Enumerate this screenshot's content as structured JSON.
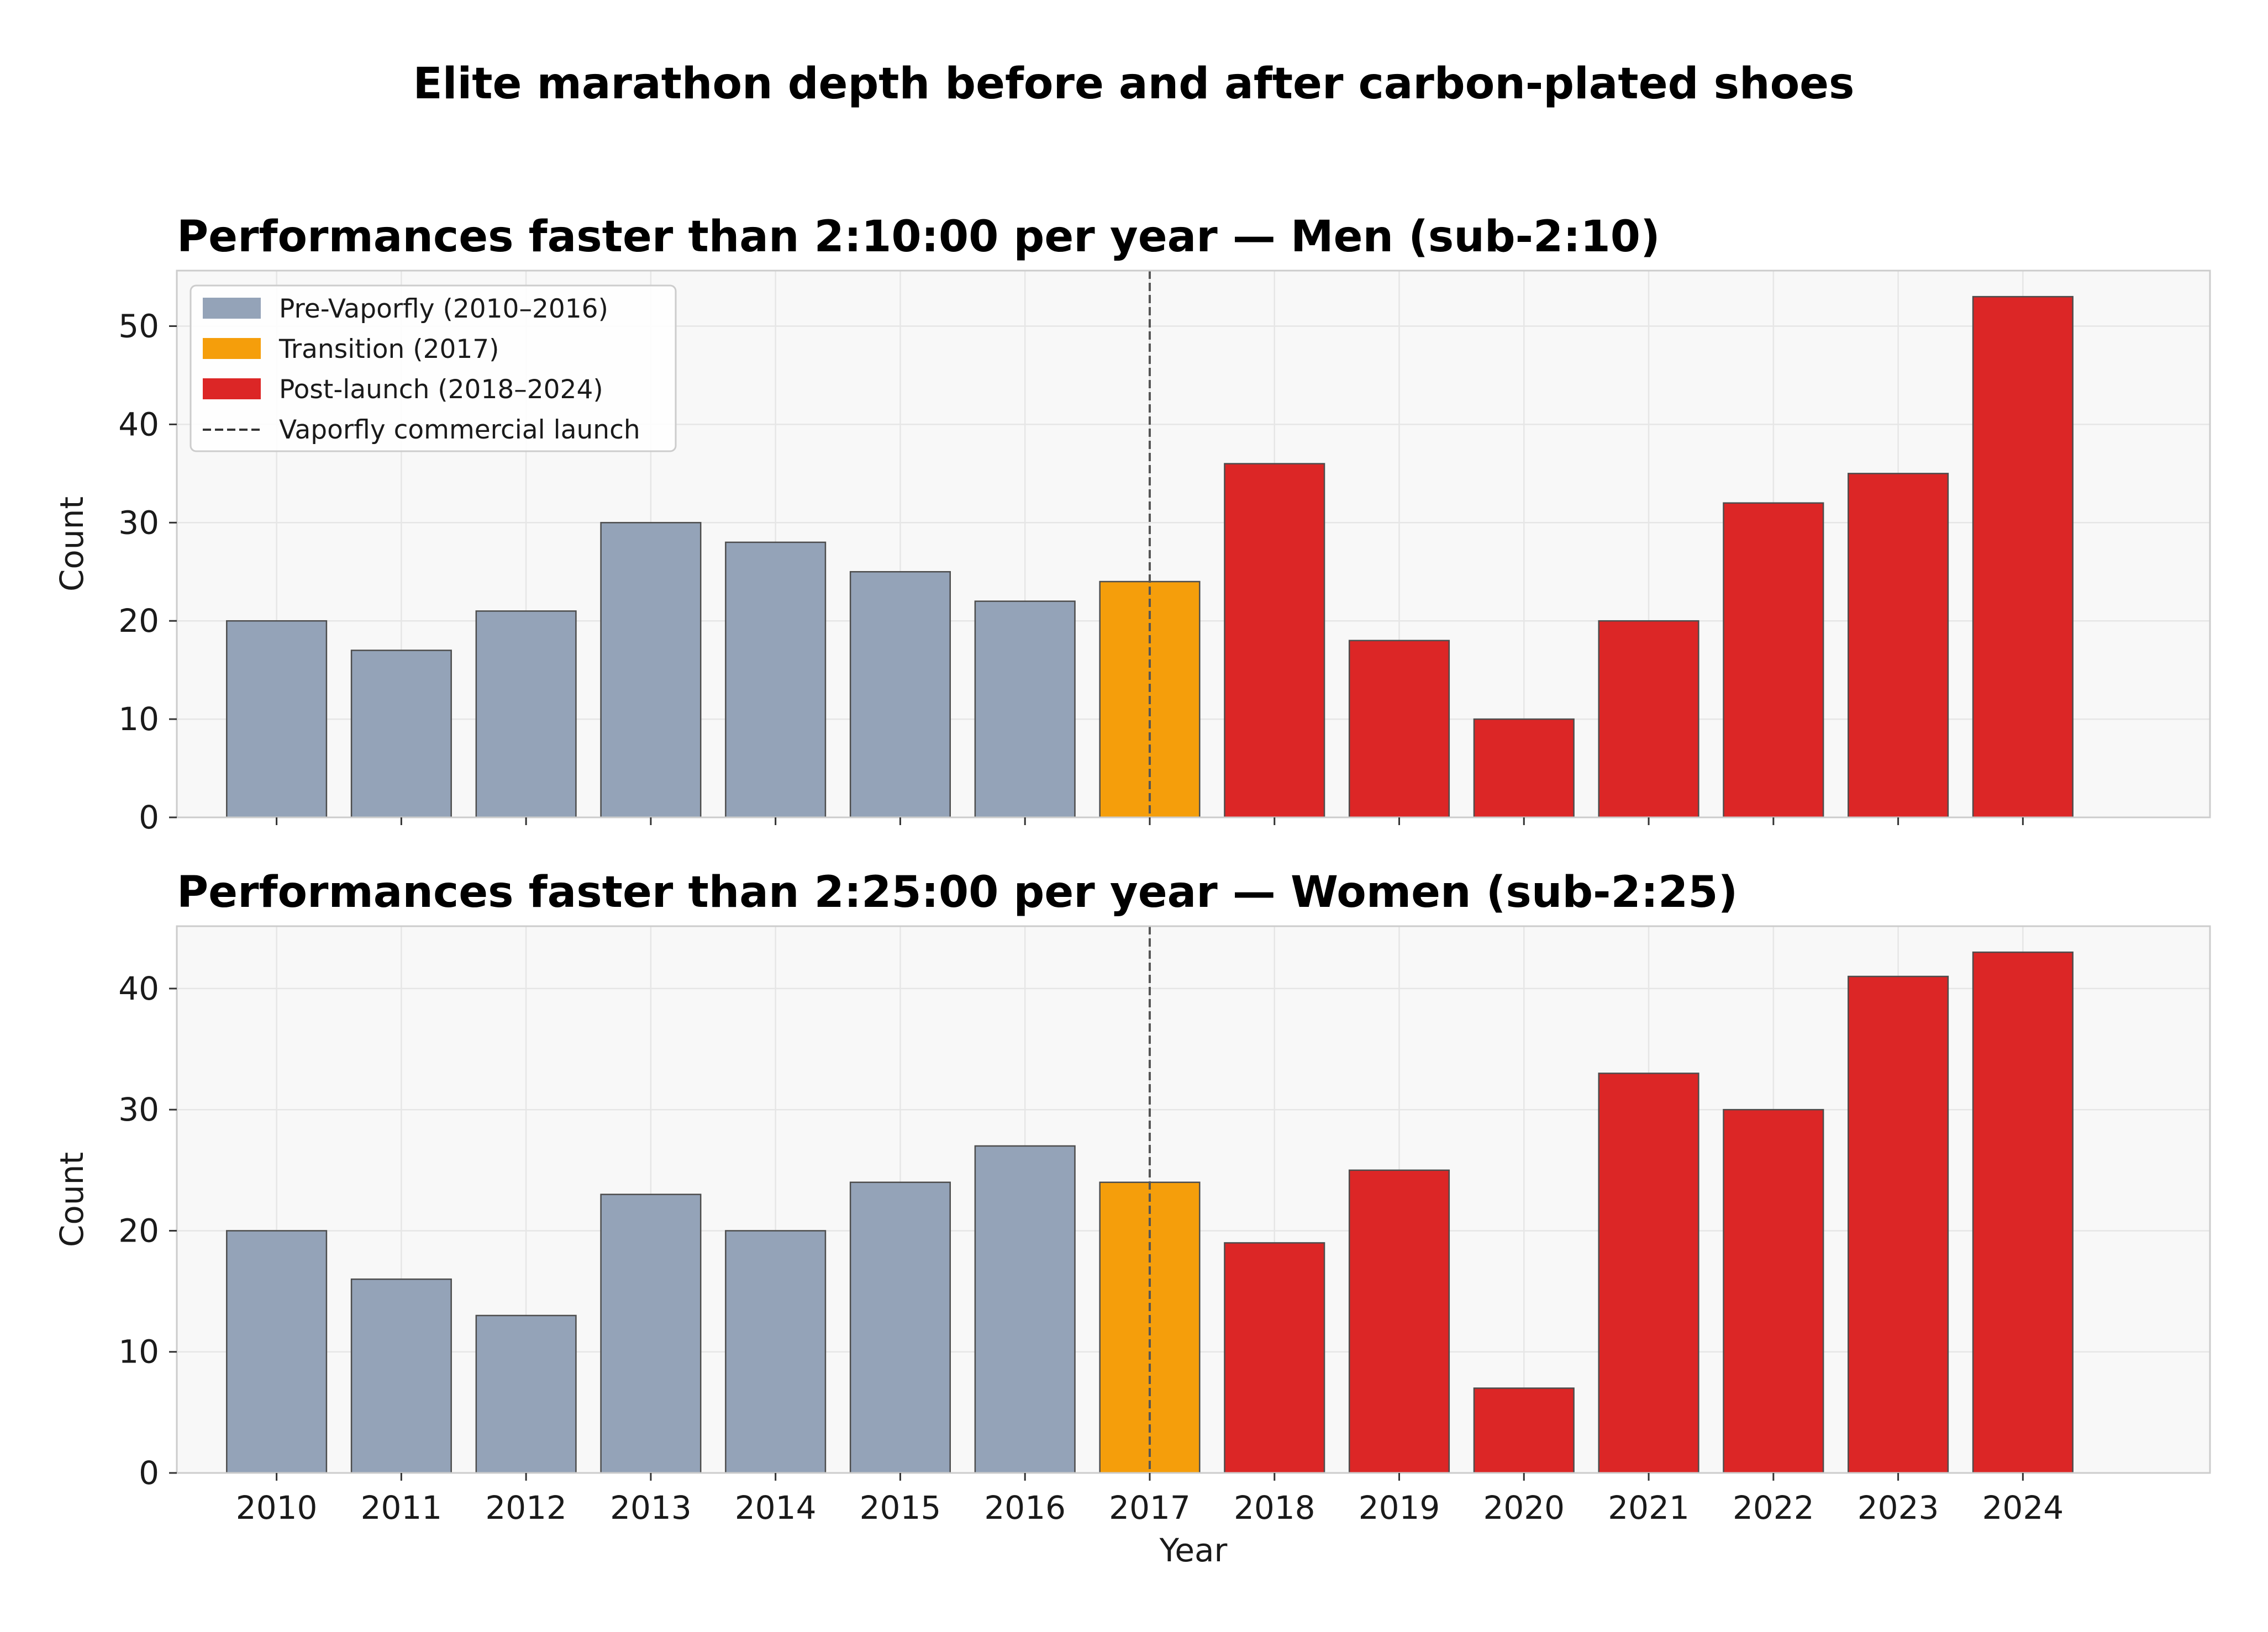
{
  "suptitle": "Elite marathon depth before and after carbon-plated shoes",
  "colors": {
    "pre": "#94a3b8",
    "transition": "#f59e0b",
    "post": "#dc2626",
    "launch_line": "#555555",
    "axes_bg": "#f8f8f8",
    "grid": "#e6e6e6",
    "spine": "#cccccc",
    "bar_edge": "#4d4d4d"
  },
  "legend": {
    "placement": "upper-left",
    "entries": [
      {
        "label": "Pre-Vaporfly (2010–2016)",
        "kind": "patch",
        "color_key": "pre"
      },
      {
        "label": "Transition (2017)",
        "kind": "patch",
        "color_key": "transition"
      },
      {
        "label": "Post-launch (2018–2024)",
        "kind": "patch",
        "color_key": "post"
      },
      {
        "label": "Vaporfly commercial launch",
        "kind": "dashed-line",
        "color_key": "launch_line"
      }
    ]
  },
  "chart_data": [
    {
      "type": "bar",
      "title": "Performances faster than 2:10:00 per year — Men (sub-2:10)",
      "xlabel": "",
      "ylabel": "Count",
      "categories": [
        "2010",
        "2011",
        "2012",
        "2013",
        "2014",
        "2015",
        "2016",
        "2017",
        "2018",
        "2019",
        "2020",
        "2021",
        "2022",
        "2023",
        "2024"
      ],
      "values": [
        20,
        17,
        21,
        30,
        28,
        25,
        22,
        24,
        36,
        18,
        10,
        20,
        32,
        35,
        53
      ],
      "phase": [
        "pre",
        "pre",
        "pre",
        "pre",
        "pre",
        "pre",
        "pre",
        "transition",
        "post",
        "post",
        "post",
        "post",
        "post",
        "post",
        "post"
      ],
      "ylim": [
        0,
        55.65
      ],
      "yticks": [
        0,
        10,
        20,
        30,
        40,
        50
      ],
      "show_xtick_labels": false,
      "launch_year": "2017",
      "grid": true,
      "legend": true
    },
    {
      "type": "bar",
      "title": "Performances faster than 2:25:00 per year — Women (sub-2:25)",
      "xlabel": "Year",
      "ylabel": "Count",
      "categories": [
        "2010",
        "2011",
        "2012",
        "2013",
        "2014",
        "2015",
        "2016",
        "2017",
        "2018",
        "2019",
        "2020",
        "2021",
        "2022",
        "2023",
        "2024"
      ],
      "values": [
        20,
        16,
        13,
        23,
        20,
        24,
        27,
        24,
        19,
        25,
        7,
        33,
        30,
        41,
        43
      ],
      "phase": [
        "pre",
        "pre",
        "pre",
        "pre",
        "pre",
        "pre",
        "pre",
        "transition",
        "post",
        "post",
        "post",
        "post",
        "post",
        "post",
        "post"
      ],
      "ylim": [
        0,
        45.15
      ],
      "yticks": [
        0,
        10,
        20,
        30,
        40
      ],
      "show_xtick_labels": true,
      "launch_year": "2017",
      "grid": true,
      "legend": false
    }
  ]
}
